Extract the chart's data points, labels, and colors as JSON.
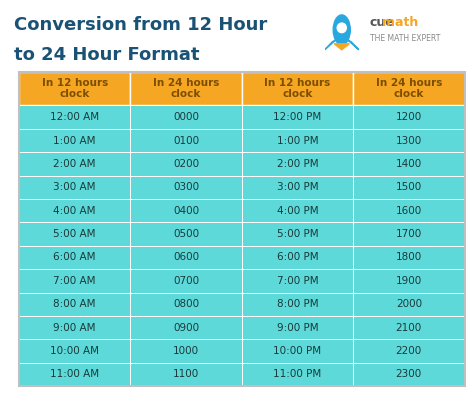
{
  "title_line1": "Conversion from 12 Hour",
  "title_line2": "to 24 Hour Format",
  "title_color": "#1a5276",
  "bg_color": "#ffffff",
  "header_bg": "#f5a623",
  "header_text_color": "#7d4e00",
  "cell_bg": "#5dd9d9",
  "cell_text_color": "#1a3a3a",
  "border_color": "#e0e0e0",
  "headers": [
    "In 12 hours\nclock",
    "In 24 hours\nclock",
    "In 12 hours\nclock",
    "In 24 hours\nclock"
  ],
  "col1_am": [
    "12:00 AM",
    "1:00 AM",
    "2:00 AM",
    "3:00 AM",
    "4:00 AM",
    "5:00 AM",
    "6:00 AM",
    "7:00 AM",
    "8:00 AM",
    "9:00 AM",
    "10:00 AM",
    "11:00 AM"
  ],
  "col2_am24": [
    "0000",
    "0100",
    "0200",
    "0300",
    "0400",
    "0500",
    "0600",
    "0700",
    "0800",
    "0900",
    "1000",
    "1100"
  ],
  "col3_pm": [
    "12:00 PM",
    "1:00 PM",
    "2:00 PM",
    "3:00 PM",
    "4:00 PM",
    "5:00 PM",
    "6:00 PM",
    "7:00 PM",
    "8:00 PM",
    "9:00 PM",
    "10:00 PM",
    "11:00 PM"
  ],
  "col4_pm24": [
    "1200",
    "1300",
    "1400",
    "1500",
    "1600",
    "1700",
    "1800",
    "1900",
    "2000",
    "2100",
    "2200",
    "2300"
  ],
  "cuemath_color": "#f5a623",
  "cuemath_blue": "#29a8e0"
}
